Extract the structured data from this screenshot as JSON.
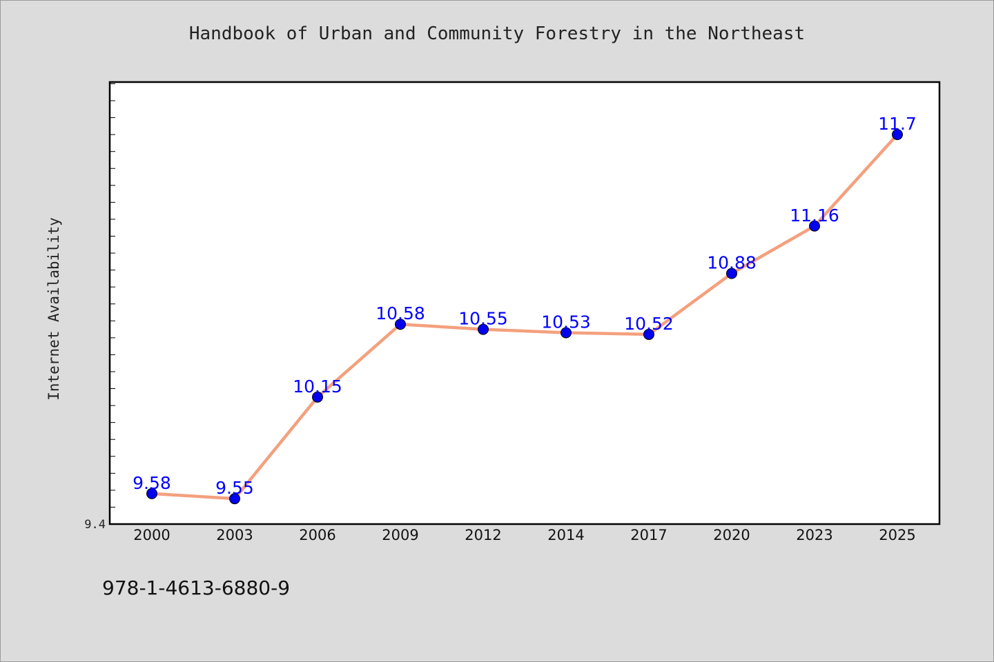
{
  "chart_data": {
    "type": "line",
    "title": "Handbook of Urban and Community Forestry in the Northeast",
    "xlabel": "",
    "ylabel": "Internet Availability",
    "categories": [
      "2000",
      "2003",
      "2006",
      "2009",
      "2012",
      "2014",
      "2017",
      "2020",
      "2023",
      "2025"
    ],
    "series": [
      {
        "values": [
          9.58,
          9.55,
          10.15,
          10.58,
          10.55,
          10.53,
          10.52,
          10.88,
          11.16,
          11.7
        ],
        "labels": [
          "9.58",
          "9.55",
          "10.15",
          "10.58",
          "10.55",
          "10.53",
          "10.52",
          "10.88",
          "11.16",
          "11.7"
        ]
      }
    ],
    "ylim": [
      9.4,
      12.01
    ],
    "y_tick_labels": [
      "9.4"
    ],
    "grid": false,
    "colors": {
      "line": "#f4a07e",
      "marker": "#0000ee",
      "data_label": "#0000ff",
      "plot_background": "#ffffff",
      "page_background": "#dcdcdc"
    }
  },
  "footer": {
    "isbn": "978-1-4613-6880-9"
  }
}
